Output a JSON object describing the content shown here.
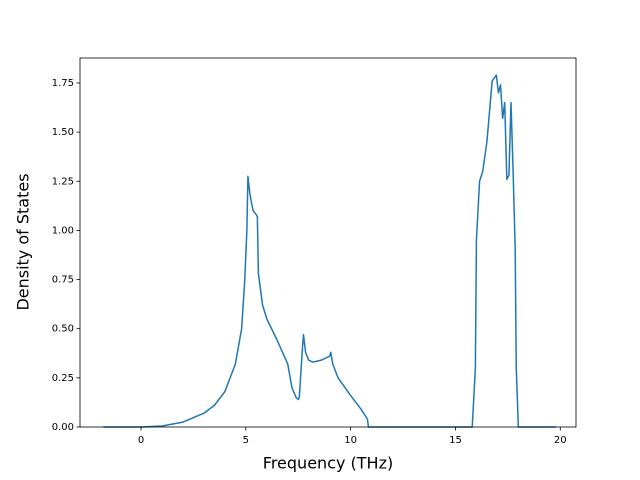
{
  "chart_data": {
    "type": "line",
    "xlabel": "Frequency (THz)",
    "ylabel": "Density of States",
    "xlim": [
      -2.91,
      20.75
    ],
    "ylim": [
      0,
      1.877
    ],
    "xticks": [
      0,
      5,
      10,
      15,
      20
    ],
    "yticks": [
      {
        "value": 0,
        "label": "0.00"
      },
      {
        "value": 0.25,
        "label": "0.25"
      },
      {
        "value": 0.5,
        "label": "0.50"
      },
      {
        "value": 0.75,
        "label": "0.75"
      },
      {
        "value": 1,
        "label": "1.00"
      },
      {
        "value": 1.25,
        "label": "1.25"
      },
      {
        "value": 1.5,
        "label": "1.50"
      },
      {
        "value": 1.75,
        "label": "1.75"
      }
    ],
    "color": "#1f77b4",
    "x": [
      -1.8,
      0,
      1,
      2,
      3,
      3.5,
      4,
      4.5,
      4.8,
      4.95,
      5.05,
      5.1,
      5.2,
      5.35,
      5.5,
      5.55,
      5.6,
      5.8,
      6.0,
      6.5,
      7.0,
      7.2,
      7.4,
      7.5,
      7.55,
      7.7,
      7.75,
      7.85,
      8.0,
      8.2,
      8.6,
      9.0,
      9.05,
      9.15,
      9.4,
      10,
      10.5,
      10.8,
      10.85,
      15.8,
      15.95,
      16.0,
      16.15,
      16.3,
      16.5,
      16.75,
      16.95,
      17.05,
      17.15,
      17.25,
      17.35,
      17.45,
      17.55,
      17.65,
      17.75,
      17.85,
      17.9,
      18.0,
      19.8
    ],
    "values": [
      0,
      0,
      0.005,
      0.025,
      0.07,
      0.11,
      0.18,
      0.32,
      0.5,
      0.75,
      1.0,
      1.275,
      1.18,
      1.1,
      1.08,
      1.07,
      0.78,
      0.62,
      0.55,
      0.44,
      0.32,
      0.2,
      0.15,
      0.14,
      0.15,
      0.4,
      0.47,
      0.38,
      0.34,
      0.33,
      0.34,
      0.36,
      0.38,
      0.32,
      0.25,
      0.16,
      0.09,
      0.04,
      0,
      0,
      0.3,
      0.95,
      1.25,
      1.3,
      1.45,
      1.76,
      1.79,
      1.7,
      1.74,
      1.57,
      1.65,
      1.26,
      1.28,
      1.65,
      1.3,
      0.9,
      0.3,
      0,
      0
    ]
  }
}
